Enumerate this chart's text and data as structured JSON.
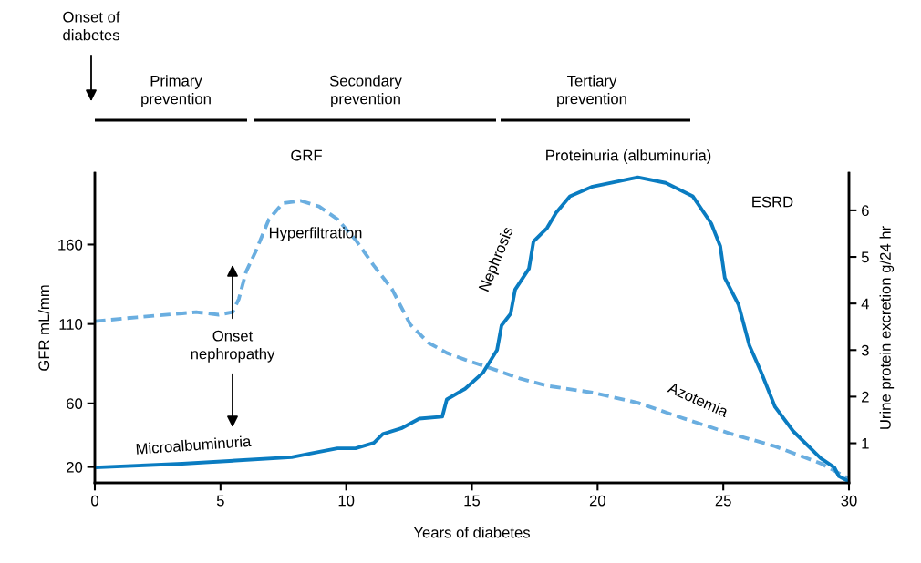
{
  "chart_data": {
    "type": "line",
    "xlabel": "Years of diabetes",
    "ylabel": "GFR mL/mm",
    "y2label": "Urine protein excretion g/24 hr",
    "xlim": [
      0,
      30
    ],
    "xticks": [
      0,
      5,
      10,
      15,
      20,
      25,
      30
    ],
    "ylim": [
      10,
      205
    ],
    "yticks": [
      20,
      60,
      110,
      160
    ],
    "y2lim": [
      0.15,
      6.8
    ],
    "y2ticks": [
      1,
      2,
      3,
      4,
      5,
      6
    ],
    "grid": false,
    "legend": false,
    "series": [
      {
        "color": "#6aaee0",
        "line_style": "dashed",
        "x": [
          0,
          1.67,
          3.48,
          4.03,
          4.93,
          5.48,
          5.73,
          6.02,
          6.38,
          6.93,
          7.47,
          8.2,
          8.92,
          9.65,
          10.37,
          11.1,
          11.82,
          12.55,
          13.27,
          14.0,
          14.73,
          15.81,
          16.9,
          17.99,
          19.8,
          21.6,
          23.43,
          25.24,
          27.06,
          28.87,
          29.96
        ],
        "values": [
          111.7,
          114.2,
          116.7,
          117.5,
          115.8,
          117.5,
          125.8,
          143,
          155,
          176,
          186,
          187.5,
          184,
          176,
          163,
          146.7,
          132,
          109.6,
          98.2,
          91.8,
          87.5,
          81.8,
          75.7,
          71.1,
          66.8,
          60.4,
          50.5,
          41.2,
          33,
          22.3,
          13
        ]
      },
      {
        "color": "#0a7cc1",
        "line_style": "solid",
        "axis": "y2",
        "x": [
          0,
          3.48,
          7.83,
          8.56,
          9.65,
          10.37,
          11.1,
          11.46,
          12.19,
          12.91,
          13.82,
          14.0,
          14.73,
          15.45,
          16.0,
          16.18,
          16.54,
          16.72,
          17.27,
          17.45,
          17.99,
          18.35,
          18.9,
          19.8,
          21.6,
          22.71,
          23.79,
          24.52,
          24.88,
          25.06,
          25.61,
          26.04,
          26.51,
          27.06,
          27.78,
          28.87,
          29.42,
          29.6,
          29.96
        ],
        "values": [
          0.48,
          0.56,
          0.7,
          0.78,
          0.89,
          0.89,
          1.01,
          1.2,
          1.32,
          1.53,
          1.57,
          1.94,
          2.17,
          2.52,
          3.0,
          3.53,
          3.78,
          4.3,
          4.75,
          5.33,
          5.62,
          5.95,
          6.3,
          6.51,
          6.71,
          6.59,
          6.3,
          5.72,
          5.23,
          4.55,
          3.97,
          3.1,
          2.52,
          1.78,
          1.26,
          0.68,
          0.48,
          0.29,
          0.19
        ]
      }
    ],
    "annotations": [
      "Onset of\ndiabetes",
      "Primary\nprevention",
      "Secondary\nprevention",
      "Tertiary\nprevention",
      "GRF",
      "Hyperfiltration",
      "Proteinuria (albuminuria)",
      "ESRD",
      "Nephrosis",
      "Azotemia",
      "Microalbuminuria",
      "Onset\nnephropathy"
    ]
  }
}
